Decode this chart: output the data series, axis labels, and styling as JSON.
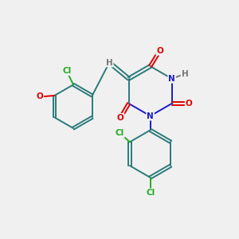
{
  "bg_color": "#f0f0f0",
  "C": "#2a7a7a",
  "N": "#1a1acc",
  "O": "#dd0000",
  "Cl": "#22aa22",
  "H": "#777777",
  "lw": 1.4,
  "fs": 7.5,
  "figsize": [
    3.0,
    3.0
  ],
  "dpi": 100
}
